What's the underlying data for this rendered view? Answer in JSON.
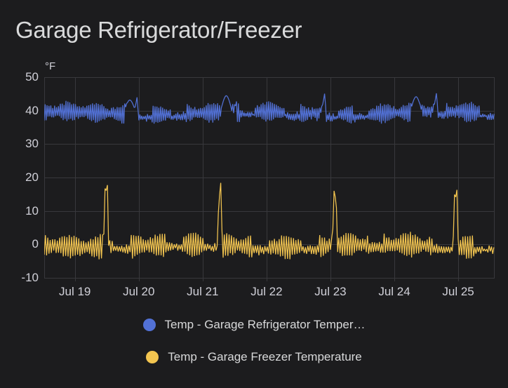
{
  "panel": {
    "title": "Garage Refrigerator/Freezer"
  },
  "colors": {
    "background": "#1c1c1e",
    "grid": "rgba(204,204,220,0.16)",
    "tick_text": "#d0d0d8",
    "refrigerator_line": "#5271d6",
    "freezer_line": "#f3c550"
  },
  "chart_data": {
    "type": "line",
    "title": "Garage Refrigerator/Freezer",
    "xlabel": "",
    "ylabel": "",
    "y_unit": "°F",
    "ylim": [
      -10,
      50
    ],
    "y_ticks": [
      50,
      40,
      30,
      20,
      10,
      0,
      -10
    ],
    "x_ticks": [
      "Jul 19",
      "Jul 20",
      "Jul 21",
      "Jul 22",
      "Jul 23",
      "Jul 24",
      "Jul 25"
    ],
    "x_tick_days": [
      19,
      20,
      21,
      22,
      23,
      24,
      25
    ],
    "x_range_days": [
      18.52,
      25.57
    ],
    "grid": true,
    "legend_position": "bottom",
    "series": [
      {
        "name": "Temp - Garage Refrigerator Temper…",
        "color": "#5271d6",
        "event_style": "ramp",
        "band": [
          36.5,
          42.2
        ],
        "baseline_mean": 39.3,
        "osc_amp": 2.7,
        "cycle_period_hours": 0.7,
        "quiet_shift": -0.9,
        "quiet_windows": [
          [
            20.0,
            20.22
          ],
          [
            20.5,
            20.74
          ],
          [
            21.58,
            21.8
          ],
          [
            22.3,
            22.52
          ],
          [
            22.95,
            23.12
          ],
          [
            23.35,
            23.58
          ],
          [
            24.68,
            24.82
          ],
          [
            25.35,
            25.57
          ]
        ],
        "defrost_events": [
          {
            "day": 19.86,
            "peak": 43.2,
            "shape": "round"
          },
          {
            "day": 19.98,
            "peak": 44.8,
            "shape": "sharp"
          },
          {
            "day": 21.37,
            "peak": 44.5,
            "shape": "round"
          },
          {
            "day": 21.54,
            "peak": 43.8,
            "shape": "sharp"
          },
          {
            "day": 22.91,
            "peak": 45.3,
            "shape": "sharp"
          },
          {
            "day": 24.34,
            "peak": 44.2,
            "shape": "round"
          },
          {
            "day": 24.66,
            "peak": 45.5,
            "shape": "sharp"
          }
        ]
      },
      {
        "name": "Temp - Garage Freezer Temperature",
        "color": "#f3c550",
        "event_style": "spike",
        "band": [
          -4,
          3.5
        ],
        "baseline_mean": -0.35,
        "osc_amp": 3.4,
        "cycle_period_hours": 0.9,
        "quiet_shift": -0.9,
        "quiet_windows": [
          [
            19.62,
            19.88
          ],
          [
            20.42,
            20.68
          ],
          [
            21.02,
            21.24
          ],
          [
            21.78,
            22.02
          ],
          [
            22.56,
            22.82
          ],
          [
            23.6,
            23.84
          ],
          [
            24.6,
            24.92
          ],
          [
            25.25,
            25.57
          ]
        ],
        "defrost_events": [
          {
            "day": 19.5,
            "peak": 23
          },
          {
            "day": 21.28,
            "peak": 19
          },
          {
            "day": 23.08,
            "peak": 19
          },
          {
            "day": 24.97,
            "peak": 21
          }
        ]
      }
    ]
  }
}
